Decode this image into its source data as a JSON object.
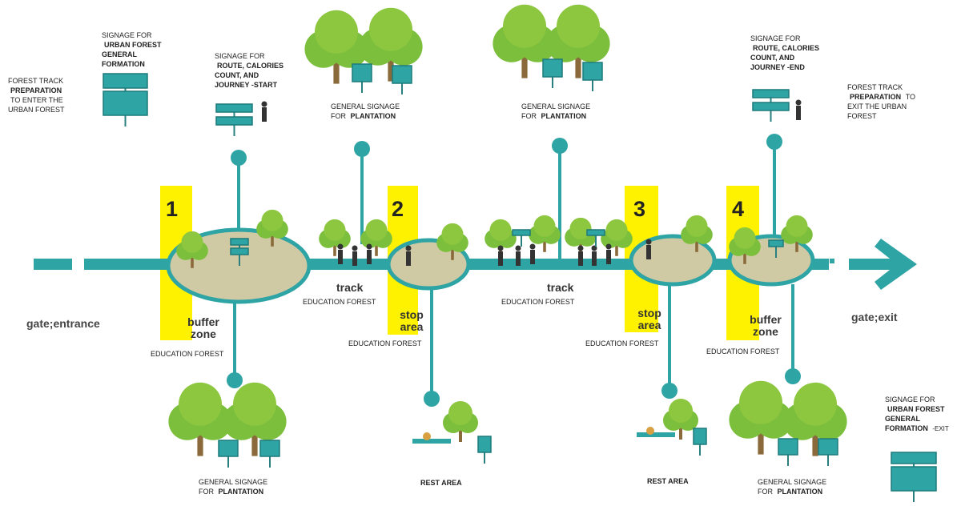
{
  "annotations": [
    {
      "parts": [
        {
          "text": "FOREST TRACK"
        },
        {
          "text": "PREPARATION"
        },
        {
          "text": "TO ENTER THE URBAN FOREST"
        }
      ]
    },
    {
      "parts": [
        {
          "text": "SIGNAGE FOR"
        },
        {
          "text": "URBAN FOREST GENERAL FORMATION"
        }
      ]
    },
    {
      "parts": [
        {
          "text": "SIGNAGE FOR"
        },
        {
          "text": "ROUTE, CALORIES COUNT, AND JOURNEY -START"
        }
      ]
    },
    {
      "parts": [
        {
          "text": "GENERAL SIGNAGE FOR"
        },
        {
          "text": "PLANTATION"
        }
      ]
    },
    {
      "parts": [
        {
          "text": "GENERAL SIGNAGE FOR"
        },
        {
          "text": "PLANTATION"
        }
      ]
    },
    {
      "parts": [
        {
          "text": "SIGNAGE FOR"
        },
        {
          "text": "ROUTE, CALORIES COUNT, AND JOURNEY -END"
        }
      ]
    },
    {
      "parts": [
        {
          "text": "FOREST TRACK"
        },
        {
          "text": "PREPARATION"
        },
        {
          "text": "TO EXIT THE URBAN FOREST"
        }
      ]
    },
    {
      "parts": [
        {
          "text": "GENERAL SIGNAGE FOR"
        },
        {
          "text": "PLANTATION"
        }
      ]
    },
    {
      "parts": [
        {
          "text": "REST AREA"
        }
      ]
    },
    {
      "parts": [
        {
          "text": "REST AREA"
        }
      ]
    },
    {
      "parts": [
        {
          "text": "GENERAL SIGNAGE FOR"
        },
        {
          "text": "PLANTATION"
        }
      ]
    },
    {
      "parts": [
        {
          "text": "SIGNAGE FOR"
        },
        {
          "text": "URBAN FOREST GENERAL FORMATION"
        },
        {
          "text": "-EXIT"
        }
      ]
    }
  ],
  "zones": [
    {
      "number": "1",
      "name": "buffer zone",
      "sub": "EDUCATION FOREST"
    },
    {
      "number": "2",
      "name": "stop area",
      "sub": "EDUCATION FOREST"
    },
    {
      "number": "3",
      "name": "stop area",
      "sub": "EDUCATION FOREST"
    },
    {
      "number": "4",
      "name": "buffer zone",
      "sub": "EDUCATION FOREST"
    }
  ],
  "tracks": [
    {
      "name": "track",
      "sub": "EDUCATION FOREST"
    },
    {
      "name": "track",
      "sub": "EDUCATION FOREST"
    }
  ],
  "gates": {
    "entrance": "gate;entrance",
    "exit": "gate;exit"
  }
}
